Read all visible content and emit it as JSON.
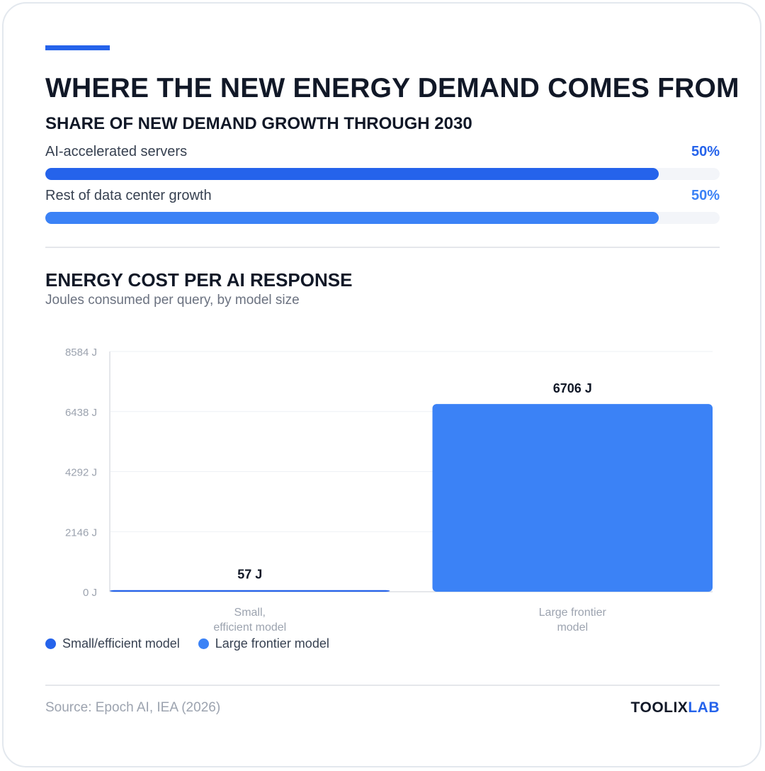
{
  "title": "WHERE THE NEW ENERGY DEMAND COMES FROM",
  "share_section": {
    "title": "SHARE OF NEW DEMAND GROWTH THROUGH 2030",
    "items": [
      {
        "label": "AI-accelerated servers",
        "value_text": "50%",
        "fraction": 0.91,
        "color": "#2563eb"
      },
      {
        "label": "Rest of data center growth",
        "value_text": "50%",
        "fraction": 0.91,
        "color": "#3b82f6"
      }
    ]
  },
  "energy_section": {
    "title": "ENERGY COST PER AI RESPONSE",
    "subtitle": "Joules consumed per query, by model size"
  },
  "chart_data": {
    "type": "bar",
    "categories": [
      "Small,\nefficient model",
      "Large frontier\nmodel"
    ],
    "values": [
      57,
      6706
    ],
    "value_labels": [
      "57 J",
      "6706 J"
    ],
    "colors": [
      "#2563eb",
      "#3b82f6"
    ],
    "ylim": [
      0,
      8584
    ],
    "yticks": [
      0,
      2146,
      4292,
      6438,
      8584
    ],
    "ytick_labels": [
      "0 J",
      "2146 J",
      "4292 J",
      "6438 J",
      "8584 J"
    ],
    "grid": true,
    "legend_position": "bottom-left",
    "legend": [
      {
        "label": "Small/efficient model",
        "color": "#2563eb"
      },
      {
        "label": "Large frontier model",
        "color": "#3b82f6"
      }
    ]
  },
  "footer": {
    "source": "Source: Epoch AI, IEA (2026)",
    "brand_part1": "TOOLIX",
    "brand_part2": "LAB"
  }
}
